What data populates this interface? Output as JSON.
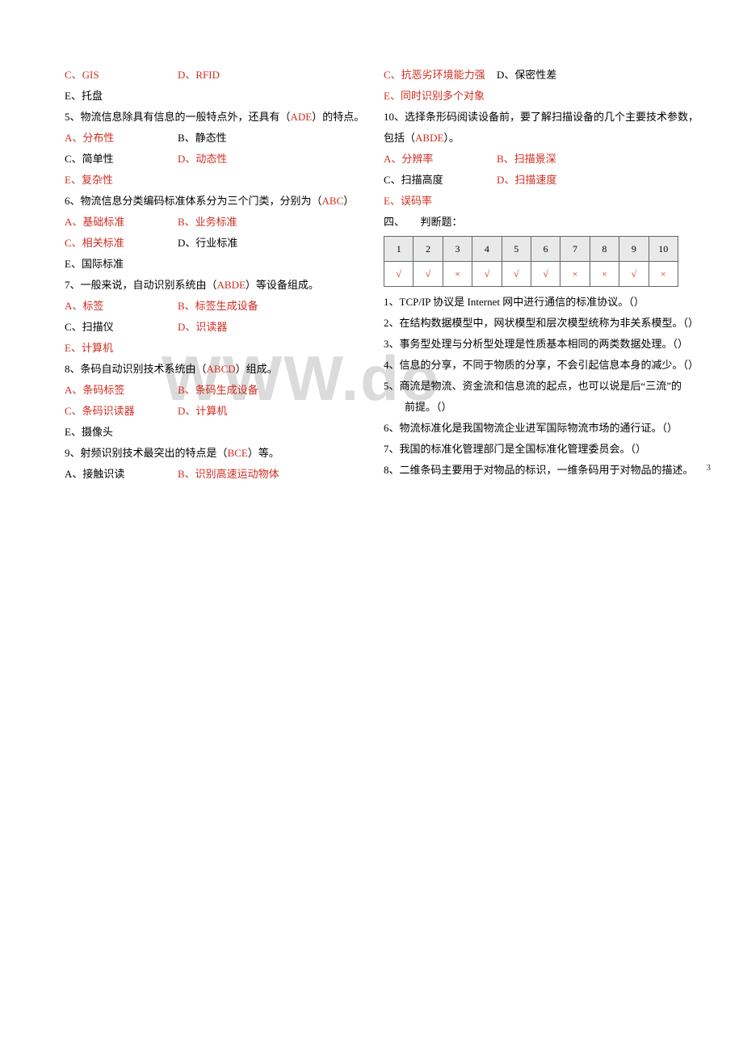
{
  "watermark": "WWW.do",
  "page_number": "3",
  "left": {
    "l1": {
      "c": "C、GIS",
      "d": "D、RFID"
    },
    "l2": "E、托盘",
    "q5": {
      "stem_a": "5、物流信息除具有信息的一般特点外，还具有（",
      "ans": "ADE",
      "stem_b": "）的特点。"
    },
    "q5o": {
      "a": "A、分布性",
      "b": "B、静态性",
      "c": "C、简单性",
      "d": "D、动态性",
      "e": "E、复杂性"
    },
    "q6": {
      "stem_a": "6、物流信息分类编码标准体系分为三个门类，分别为（",
      "ans": "ABC",
      "stem_b": "）"
    },
    "q6o": {
      "a": "A、基础标准",
      "b": "B、业务标准",
      "c": "C、相关标准",
      "d": "D、行业标准",
      "e": "E、国际标准"
    },
    "q7": {
      "stem_a": "7、一般来说，自动识别系统由（",
      "ans": "ABDE",
      "stem_b": "）等设备组成。"
    },
    "q7o": {
      "a": "A、标签",
      "b": "B、标签生成设备",
      "c": "C、扫描仪",
      "d": "D、识读器",
      "e": "E、计算机"
    },
    "q8": {
      "stem_a": "8、条码自动识别技术系统由（",
      "ans": "ABCD",
      "stem_b": "）组成。"
    },
    "q8o": {
      "a": "A、条码标签",
      "b": "B、条码生成设备",
      "c": "C、条码识读器",
      "d": "D、计算机",
      "e": "E、摄像头"
    },
    "q9": {
      "stem_a": "9、射频识别技术最突出的特点是（",
      "ans": "BCE",
      "stem_b": "）等。"
    },
    "q9o": {
      "a": "A、接触识读",
      "b": "B、识别高速运动物体"
    }
  },
  "right": {
    "l1": {
      "c": "C、抗恶劣环境能力强",
      "d": "D、保密性差"
    },
    "l2": "E、同时识别多个对象",
    "q10a": "10、选择条形码阅读设备前，要了解扫描设备的几个主要技术参数，",
    "q10b_a": "包括（",
    "q10b_ans": "ABDE",
    "q10b_b": "）。",
    "q10o": {
      "a": "A、分辨率",
      "b": "B、扫描景深",
      "c": "C、扫描高度",
      "d": "D、扫描速度",
      "e": "E、误码率"
    },
    "section4": "四、　　判断题：",
    "tf_header": [
      "1",
      "2",
      "3",
      "4",
      "5",
      "6",
      "7",
      "8",
      "9",
      "10"
    ],
    "tf_answers": [
      "√",
      "√",
      "×",
      "√",
      "√",
      "√",
      "×",
      "×",
      "√",
      "×"
    ],
    "j1": "1、TCP/IP 协议是 Internet 网中进行通信的标准协议。（）",
    "j2": "2、在结构数据模型中，网状模型和层次模型统称为非关系模型。（）",
    "j3": "3、事务型处理与分析型处理是性质基本相同的两类数据处理。（）",
    "j4": "4、信息的分享，不同于物质的分享，不会引起信息本身的减少。（）",
    "j5a": "5、商流是物流、资金流和信息流的起点，也可以说是后“三流”的",
    "j5b": "　　前提。（）",
    "j6": "6、物流标准化是我国物流企业进军国际物流市场的通行证。（）",
    "j7": "7、我国的标准化管理部门是全国标准化管理委员会。（）",
    "j8": "8、二维条码主要用于对物品的标识，一维条码用于对物品的描述。"
  }
}
